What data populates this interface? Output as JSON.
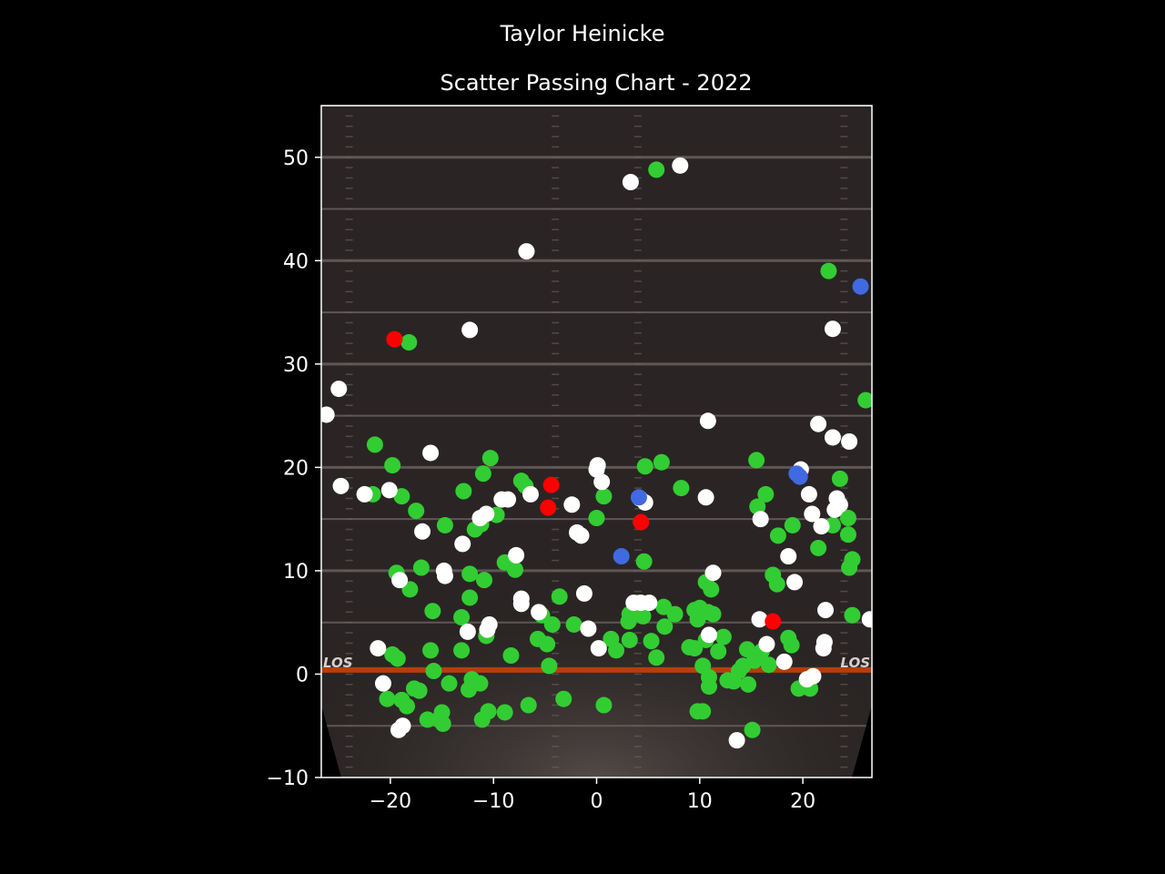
{
  "title": "Taylor Heinicke",
  "subtitle": "Scatter Passing Chart - 2022",
  "colors": {
    "background": "#000000",
    "field": "#2a2524",
    "yard_line": "#6b6360",
    "los_line": "#c2410c",
    "complete": "#32cd32",
    "incomplete": "#ffffff",
    "interception": "#ff0000",
    "touchdown": "#4169e1"
  },
  "field_text": {
    "los_left": "LOS",
    "los_right": "LOS"
  },
  "chart_data": {
    "type": "scatter",
    "xlim": [
      -26.7,
      26.7
    ],
    "ylim": [
      -10,
      55
    ],
    "xticks": [
      -20,
      -10,
      0,
      10,
      20
    ],
    "yticks": [
      -10,
      0,
      10,
      20,
      30,
      40,
      50
    ],
    "xtick_labels": [
      "−20",
      "−10",
      "0",
      "10",
      "20"
    ],
    "ytick_labels": [
      "−10",
      "0",
      "10",
      "20",
      "30",
      "40",
      "50"
    ],
    "grid": false,
    "series": [
      {
        "color_key": "complete",
        "points": [
          [
            5.8,
            48.8
          ],
          [
            22.5,
            39.0
          ],
          [
            -18.2,
            32.1
          ],
          [
            26.1,
            26.5
          ],
          [
            -21.5,
            22.2
          ],
          [
            -19.8,
            20.2
          ],
          [
            -10.3,
            20.9
          ],
          [
            -11.0,
            19.4
          ],
          [
            -7.3,
            18.7
          ],
          [
            -6.9,
            18.2
          ],
          [
            -21.7,
            17.4
          ],
          [
            -18.9,
            17.2
          ],
          [
            -17.5,
            15.8
          ],
          [
            -12.9,
            17.7
          ],
          [
            -9.7,
            15.4
          ],
          [
            -11.8,
            14.0
          ],
          [
            -11.2,
            14.5
          ],
          [
            -14.7,
            14.4
          ],
          [
            -17.0,
            10.3
          ],
          [
            -19.4,
            9.8
          ],
          [
            -18.1,
            8.2
          ],
          [
            -10.9,
            9.1
          ],
          [
            -12.3,
            9.7
          ],
          [
            -8.9,
            10.8
          ],
          [
            -7.9,
            10.1
          ],
          [
            -12.3,
            7.4
          ],
          [
            -15.9,
            6.1
          ],
          [
            -13.1,
            5.5
          ],
          [
            -10.7,
            3.7
          ],
          [
            -13.1,
            2.3
          ],
          [
            -16.1,
            2.3
          ],
          [
            -8.3,
            1.8
          ],
          [
            -5.3,
            5.7
          ],
          [
            -4.3,
            4.8
          ],
          [
            -3.6,
            7.5
          ],
          [
            -2.2,
            4.8
          ],
          [
            -5.7,
            3.4
          ],
          [
            -4.8,
            2.9
          ],
          [
            -4.6,
            0.8
          ],
          [
            -15.8,
            0.3
          ],
          [
            -19.8,
            1.9
          ],
          [
            -19.3,
            1.5
          ],
          [
            0.7,
            17.2
          ],
          [
            0.0,
            15.1
          ],
          [
            4.7,
            20.1
          ],
          [
            6.3,
            20.5
          ],
          [
            8.2,
            18.0
          ],
          [
            4.6,
            10.9
          ],
          [
            3.2,
            5.8
          ],
          [
            3.1,
            5.1
          ],
          [
            4.5,
            5.6
          ],
          [
            4.1,
            6.9
          ],
          [
            6.5,
            6.5
          ],
          [
            7.6,
            5.8
          ],
          [
            6.6,
            4.6
          ],
          [
            1.4,
            3.4
          ],
          [
            1.9,
            2.3
          ],
          [
            3.2,
            3.3
          ],
          [
            5.3,
            3.2
          ],
          [
            5.8,
            1.6
          ],
          [
            9.0,
            2.6
          ],
          [
            9.5,
            2.5
          ],
          [
            9.5,
            6.2
          ],
          [
            10.0,
            6.4
          ],
          [
            10.8,
            6.0
          ],
          [
            10.6,
            8.9
          ],
          [
            11.1,
            8.2
          ],
          [
            11.3,
            5.8
          ],
          [
            9.8,
            5.3
          ],
          [
            10.6,
            3.3
          ],
          [
            12.3,
            3.6
          ],
          [
            11.8,
            2.2
          ],
          [
            10.3,
            0.8
          ],
          [
            10.9,
            -0.3
          ],
          [
            12.7,
            -0.6
          ],
          [
            13.3,
            -0.7
          ],
          [
            13.8,
            0.3
          ],
          [
            14.2,
            0.8
          ],
          [
            15.3,
            1.3
          ],
          [
            16.0,
            2.2
          ],
          [
            16.7,
            0.9
          ],
          [
            14.6,
            2.4
          ],
          [
            18.6,
            3.5
          ],
          [
            18.9,
            2.8
          ],
          [
            17.1,
            9.6
          ],
          [
            17.5,
            8.7
          ],
          [
            17.6,
            13.4
          ],
          [
            19.0,
            14.4
          ],
          [
            16.4,
            17.4
          ],
          [
            15.6,
            16.2
          ],
          [
            15.5,
            20.7
          ],
          [
            21.5,
            12.2
          ],
          [
            22.9,
            14.4
          ],
          [
            23.6,
            18.9
          ],
          [
            24.4,
            15.1
          ],
          [
            24.4,
            13.5
          ],
          [
            24.8,
            11.1
          ],
          [
            24.5,
            10.3
          ],
          [
            24.8,
            5.7
          ],
          [
            -20.3,
            -2.4
          ],
          [
            -18.9,
            -2.5
          ],
          [
            -18.4,
            -3.1
          ],
          [
            -17.7,
            -1.4
          ],
          [
            -17.2,
            -1.6
          ],
          [
            -16.4,
            -4.4
          ],
          [
            -15.3,
            -4.4
          ],
          [
            -15.0,
            -3.7
          ],
          [
            -14.9,
            -4.8
          ],
          [
            -14.3,
            -0.9
          ],
          [
            -12.4,
            -1.5
          ],
          [
            -12.1,
            -0.5
          ],
          [
            -11.3,
            -0.9
          ],
          [
            -11.1,
            -4.4
          ],
          [
            -10.5,
            -3.6
          ],
          [
            -8.9,
            -3.7
          ],
          [
            -6.6,
            -3.0
          ],
          [
            -3.2,
            -2.4
          ],
          [
            0.7,
            -3.0
          ],
          [
            9.8,
            -3.6
          ],
          [
            10.3,
            -3.6
          ],
          [
            10.9,
            -1.2
          ],
          [
            14.7,
            -1.0
          ],
          [
            15.1,
            -5.4
          ],
          [
            19.6,
            -1.4
          ],
          [
            20.7,
            -1.4
          ]
        ]
      },
      {
        "color_key": "incomplete",
        "points": [
          [
            3.3,
            47.6
          ],
          [
            8.1,
            49.2
          ],
          [
            -6.8,
            40.9
          ],
          [
            -12.3,
            33.3
          ],
          [
            22.9,
            33.4
          ],
          [
            -25.0,
            27.6
          ],
          [
            -26.2,
            25.1
          ],
          [
            10.8,
            24.5
          ],
          [
            21.5,
            24.2
          ],
          [
            22.9,
            22.9
          ],
          [
            24.5,
            22.5
          ],
          [
            -16.1,
            21.4
          ],
          [
            -24.8,
            18.2
          ],
          [
            -22.5,
            17.4
          ],
          [
            -20.1,
            17.8
          ],
          [
            -9.2,
            16.9
          ],
          [
            -8.6,
            16.9
          ],
          [
            -10.7,
            15.5
          ],
          [
            -11.3,
            15.1
          ],
          [
            -6.4,
            17.4
          ],
          [
            -2.4,
            16.4
          ],
          [
            -1.9,
            13.7
          ],
          [
            -1.5,
            13.4
          ],
          [
            0.1,
            20.2
          ],
          [
            0.0,
            19.8
          ],
          [
            0.5,
            18.6
          ],
          [
            4.7,
            16.6
          ],
          [
            4.2,
            17.0
          ],
          [
            10.6,
            17.1
          ],
          [
            -16.9,
            13.8
          ],
          [
            -13.0,
            12.6
          ],
          [
            -7.8,
            11.5
          ],
          [
            -14.8,
            10.0
          ],
          [
            -14.7,
            9.5
          ],
          [
            -19.1,
            9.1
          ],
          [
            -7.3,
            7.3
          ],
          [
            -7.3,
            6.8
          ],
          [
            -5.6,
            6.0
          ],
          [
            -10.4,
            4.8
          ],
          [
            -10.6,
            4.3
          ],
          [
            -12.5,
            4.1
          ],
          [
            -1.2,
            7.8
          ],
          [
            -0.8,
            4.4
          ],
          [
            0.2,
            2.5
          ],
          [
            3.6,
            6.9
          ],
          [
            4.3,
            6.9
          ],
          [
            5.1,
            6.9
          ],
          [
            10.9,
            3.8
          ],
          [
            11.3,
            9.8
          ],
          [
            15.9,
            15.0
          ],
          [
            15.8,
            5.3
          ],
          [
            16.5,
            2.9
          ],
          [
            18.2,
            1.2
          ],
          [
            18.6,
            11.4
          ],
          [
            19.2,
            8.9
          ],
          [
            19.8,
            19.8
          ],
          [
            20.6,
            17.4
          ],
          [
            20.9,
            15.5
          ],
          [
            21.8,
            14.3
          ],
          [
            22.2,
            6.2
          ],
          [
            22.1,
            3.1
          ],
          [
            22.0,
            2.5
          ],
          [
            23.1,
            15.9
          ],
          [
            23.3,
            17.0
          ],
          [
            23.6,
            16.4
          ],
          [
            26.5,
            5.3
          ],
          [
            20.4,
            -0.5
          ],
          [
            21.0,
            -0.2
          ],
          [
            -21.2,
            2.5
          ],
          [
            -20.7,
            -0.9
          ],
          [
            -19.2,
            -5.4
          ],
          [
            -18.8,
            -5.0
          ],
          [
            13.6,
            -6.4
          ]
        ]
      },
      {
        "color_key": "interception",
        "points": [
          [
            -19.6,
            32.4
          ],
          [
            -4.4,
            18.3
          ],
          [
            -4.7,
            16.1
          ],
          [
            4.3,
            14.7
          ],
          [
            17.1,
            5.1
          ]
        ]
      },
      {
        "color_key": "touchdown",
        "points": [
          [
            25.6,
            37.5
          ],
          [
            4.1,
            17.1
          ],
          [
            2.4,
            11.4
          ],
          [
            19.4,
            19.4
          ],
          [
            19.7,
            19.1
          ]
        ]
      }
    ]
  }
}
